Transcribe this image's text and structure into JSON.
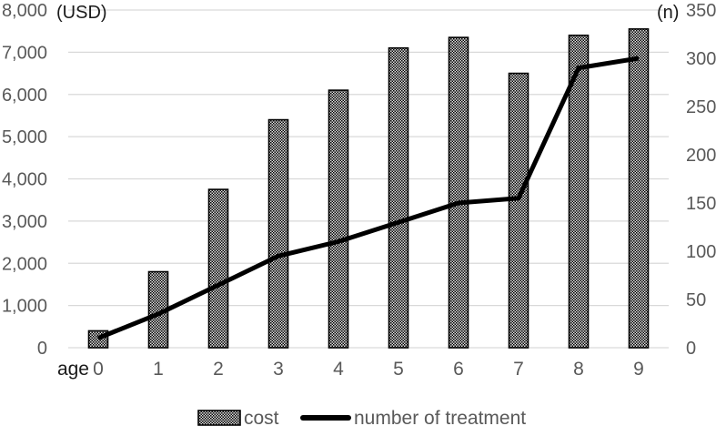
{
  "chart_data": {
    "type": "bar",
    "subtype": "combo-bar-line",
    "title": "",
    "categories": [
      "0",
      "1",
      "2",
      "3",
      "4",
      "5",
      "6",
      "7",
      "8",
      "9"
    ],
    "x_axis": {
      "prefix_label": "age"
    },
    "left_axis": {
      "unit_label": "(USD)",
      "min": 0,
      "max": 8000,
      "step": 1000,
      "tick_labels": [
        "0",
        "1,000",
        "2,000",
        "3,000",
        "4,000",
        "5,000",
        "6,000",
        "7,000",
        "8,000"
      ]
    },
    "right_axis": {
      "unit_label": "(n)",
      "min": 0,
      "max": 350,
      "step": 50,
      "tick_labels": [
        "0",
        "50",
        "100",
        "150",
        "200",
        "250",
        "300",
        "350"
      ]
    },
    "series": [
      {
        "name": "cost",
        "kind": "bar",
        "axis": "left",
        "values": [
          400,
          1800,
          3750,
          5400,
          6100,
          7100,
          7350,
          6500,
          7400,
          7550
        ]
      },
      {
        "name": "number of treatment",
        "kind": "line",
        "axis": "right",
        "values": [
          10,
          35,
          65,
          95,
          110,
          130,
          150,
          155,
          290,
          300
        ]
      }
    ],
    "legend": {
      "position": "bottom",
      "items": [
        {
          "label": "cost",
          "swatch": "hatched-bar-swatch"
        },
        {
          "label": "number of treatment",
          "swatch": "thick-line-swatch"
        }
      ]
    },
    "grid": "horizontal-only",
    "colors": {
      "gridline": "#d9d9d9",
      "tick_text": "#595959",
      "axis_unit_text": "#1a1a1a",
      "age_label_text": "#1a1a1a",
      "line_series": "#000000",
      "bar_border": "#000000",
      "bar_pattern_dark": "#000000",
      "bar_pattern_light": "#e0e0e0",
      "background": "#ffffff"
    }
  }
}
